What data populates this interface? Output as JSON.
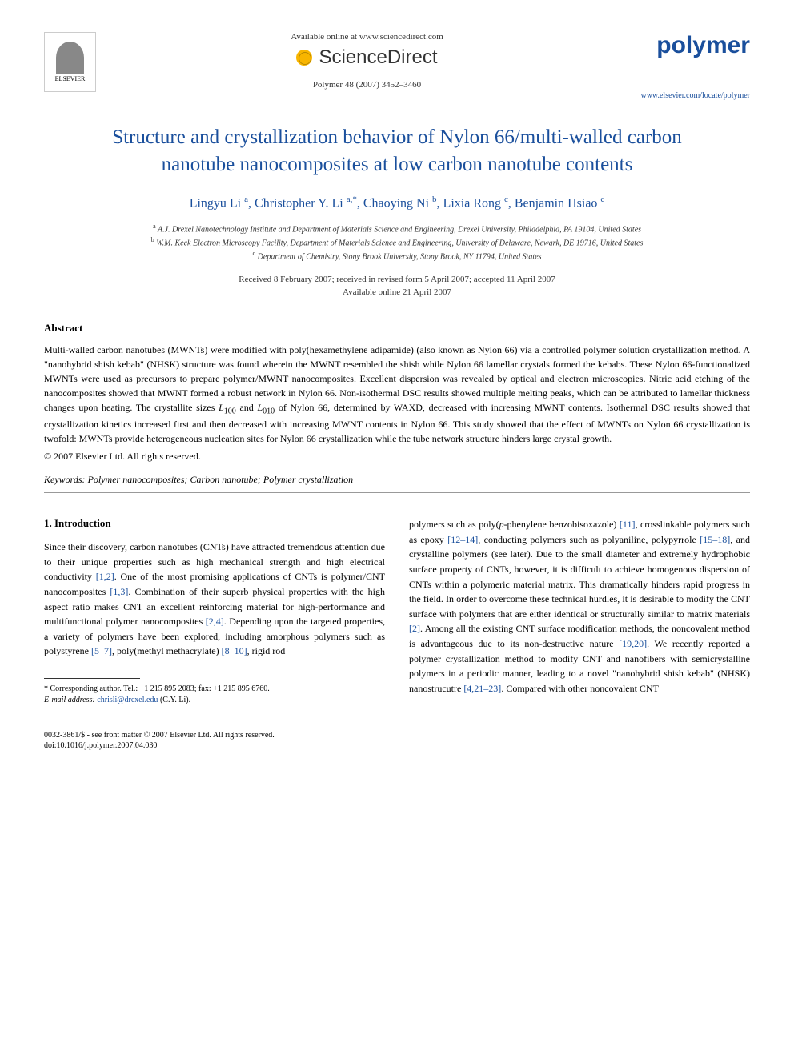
{
  "header": {
    "available_online": "Available online at www.sciencedirect.com",
    "sciencedirect": "ScienceDirect",
    "citation": "Polymer 48 (2007) 3452–3460",
    "elsevier_label": "ELSEVIER",
    "journal_logo": "polymer",
    "locate_url": "www.elsevier.com/locate/polymer"
  },
  "title": "Structure and crystallization behavior of Nylon 66/multi-walled carbon nanotube nanocomposites at low carbon nanotube contents",
  "authors_html": "Lingyu Li <sup>a</sup>, Christopher Y. Li <sup>a,*</sup>, Chaoying Ni <sup>b</sup>, Lixia Rong <sup>c</sup>, Benjamin Hsiao <sup>c</sup>",
  "affiliations": {
    "a": "A.J. Drexel Nanotechnology Institute and Department of Materials Science and Engineering, Drexel University, Philadelphia, PA 19104, United States",
    "b": "W.M. Keck Electron Microscopy Facility, Department of Materials Science and Engineering, University of Delaware, Newark, DE 19716, United States",
    "c": "Department of Chemistry, Stony Brook University, Stony Brook, NY 11794, United States"
  },
  "dates": {
    "received": "Received 8 February 2007; received in revised form 5 April 2007; accepted 11 April 2007",
    "online": "Available online 21 April 2007"
  },
  "abstract": {
    "heading": "Abstract",
    "text": "Multi-walled carbon nanotubes (MWNTs) were modified with poly(hexamethylene adipamide) (also known as Nylon 66) via a controlled polymer solution crystallization method. A \"nanohybrid shish kebab\" (NHSK) structure was found wherein the MWNT resembled the shish while Nylon 66 lamellar crystals formed the kebabs. These Nylon 66-functionalized MWNTs were used as precursors to prepare polymer/MWNT nanocomposites. Excellent dispersion was revealed by optical and electron microscopies. Nitric acid etching of the nanocomposites showed that MWNT formed a robust network in Nylon 66. Non-isothermal DSC results showed multiple melting peaks, which can be attributed to lamellar thickness changes upon heating. The crystallite sizes L₁₀₀ and L₀₁₀ of Nylon 66, determined by WAXD, decreased with increasing MWNT contents. Isothermal DSC results showed that crystallization kinetics increased first and then decreased with increasing MWNT contents in Nylon 66. This study showed that the effect of MWNTs on Nylon 66 crystallization is twofold: MWNTs provide heterogeneous nucleation sites for Nylon 66 crystallization while the tube network structure hinders large crystal growth.",
    "copyright": "© 2007 Elsevier Ltd. All rights reserved."
  },
  "keywords": {
    "label": "Keywords:",
    "list": "Polymer nanocomposites; Carbon nanotube; Polymer crystallization"
  },
  "intro": {
    "heading": "1. Introduction",
    "col1": "Since their discovery, carbon nanotubes (CNTs) have attracted tremendous attention due to their unique properties such as high mechanical strength and high electrical conductivity [1,2]. One of the most promising applications of CNTs is polymer/CNT nanocomposites [1,3]. Combination of their superb physical properties with the high aspect ratio makes CNT an excellent reinforcing material for high-performance and multifunctional polymer nanocomposites [2,4]. Depending upon the targeted properties, a variety of polymers have been explored, including amorphous polymers such as polystyrene [5–7], poly(methyl methacrylate) [8–10], rigid rod",
    "col2": "polymers such as poly(p-phenylene benzobisoxazole) [11], crosslinkable polymers such as epoxy [12–14], conducting polymers such as polyaniline, polypyrrole [15–18], and crystalline polymers (see later). Due to the small diameter and extremely hydrophobic surface property of CNTs, however, it is difficult to achieve homogenous dispersion of CNTs within a polymeric material matrix. This dramatically hinders rapid progress in the field. In order to overcome these technical hurdles, it is desirable to modify the CNT surface with polymers that are either identical or structurally similar to matrix materials [2]. Among all the existing CNT surface modification methods, the noncovalent method is advantageous due to its non-destructive nature [19,20]. We recently reported a polymer crystallization method to modify CNT and nanofibers with semicrystalline polymers in a periodic manner, leading to a novel \"nanohybrid shish kebab\" (NHSK) nanostrucutre [4,21–23]. Compared with other noncovalent CNT"
  },
  "footnote": {
    "corresponding": "* Corresponding author. Tel.: +1 215 895 2083; fax: +1 215 895 6760.",
    "email_label": "E-mail address:",
    "email": "chrisli@drexel.edu",
    "email_name": "(C.Y. Li)."
  },
  "footer": {
    "issn": "0032-3861/$ - see front matter © 2007 Elsevier Ltd. All rights reserved.",
    "doi": "doi:10.1016/j.polymer.2007.04.030"
  },
  "colors": {
    "link_blue": "#1a4f9c",
    "text": "#000000",
    "gray": "#333333"
  }
}
